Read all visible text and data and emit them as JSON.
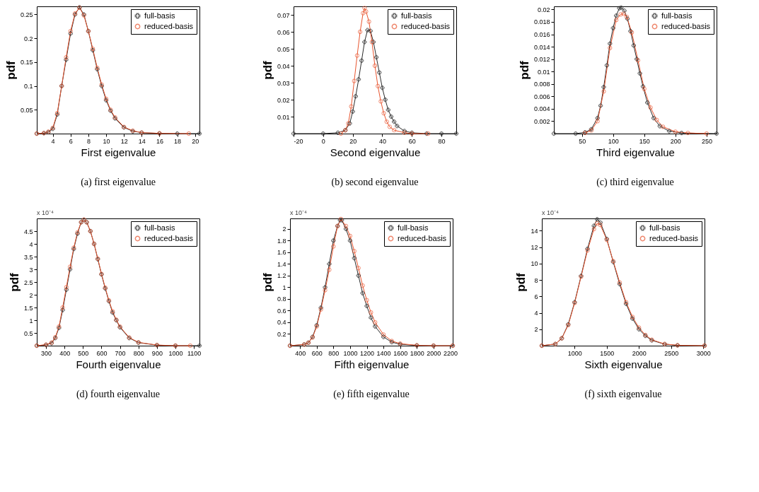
{
  "chart_data": [
    {
      "type": "line",
      "title": "(a)  first eigenvalue",
      "xlabel": "First eigenvalue",
      "ylabel": "pdf",
      "legend": "top right",
      "grid": false,
      "xlim": [
        2.2,
        20.5
      ],
      "xticks": [
        4,
        6,
        8,
        10,
        12,
        14,
        16,
        18,
        20
      ],
      "ylim": [
        0,
        0.267
      ],
      "yticks": [
        0.05,
        0.1,
        0.15,
        0.2,
        0.25
      ],
      "series": [
        {
          "name": "full-basis",
          "color": "#2b2b2b",
          "marker": "cross",
          "x": [
            2.2,
            3,
            3.5,
            4,
            4.5,
            5,
            5.5,
            6,
            6.5,
            7,
            7.5,
            8,
            8.5,
            9,
            9.5,
            10,
            10.5,
            11,
            12,
            13,
            14,
            16,
            18,
            20.5
          ],
          "values": [
            0,
            0.001,
            0.003,
            0.01,
            0.04,
            0.1,
            0.155,
            0.21,
            0.25,
            0.265,
            0.25,
            0.215,
            0.175,
            0.135,
            0.1,
            0.07,
            0.048,
            0.032,
            0.013,
            0.005,
            0.002,
            0.0005,
            0,
            0
          ]
        },
        {
          "name": "reduced-basis",
          "color": "#e8542e",
          "marker": "circle",
          "x": [
            2.2,
            3,
            3.5,
            4,
            4.5,
            5,
            5.5,
            6,
            6.5,
            7,
            7.5,
            8,
            8.5,
            9,
            9.5,
            10,
            10.5,
            11,
            12,
            13,
            14,
            16,
            19.3
          ],
          "values": [
            0,
            0.001,
            0.004,
            0.012,
            0.043,
            0.1,
            0.16,
            0.215,
            0.252,
            0.264,
            0.248,
            0.215,
            0.178,
            0.138,
            0.103,
            0.073,
            0.05,
            0.034,
            0.014,
            0.006,
            0.002,
            0.0005,
            0
          ]
        }
      ]
    },
    {
      "type": "line",
      "title": "(b)  second eigenvalue",
      "xlabel": "Second eigenvalue",
      "ylabel": "pdf",
      "legend": "top right",
      "grid": false,
      "xlim": [
        -20,
        90
      ],
      "xticks": [
        -20,
        0,
        20,
        40,
        60,
        80
      ],
      "ylim": [
        0,
        0.075
      ],
      "yticks": [
        0.01,
        0.02,
        0.03,
        0.04,
        0.05,
        0.06,
        0.07
      ],
      "series": [
        {
          "name": "full-basis",
          "color": "#2b2b2b",
          "marker": "cross",
          "x": [
            -20,
            0,
            10,
            15,
            18,
            20,
            22,
            24,
            26,
            28,
            30,
            32,
            34,
            36,
            38,
            40,
            42,
            44,
            46,
            48,
            50,
            55,
            60,
            70,
            80,
            90
          ],
          "values": [
            0,
            0,
            0.0005,
            0.002,
            0.006,
            0.013,
            0.022,
            0.032,
            0.043,
            0.054,
            0.061,
            0.0605,
            0.054,
            0.045,
            0.036,
            0.027,
            0.02,
            0.014,
            0.01,
            0.007,
            0.0045,
            0.0015,
            0.0005,
            0,
            0,
            0
          ]
        },
        {
          "name": "reduced-basis",
          "color": "#e8542e",
          "marker": "circle",
          "x": [
            12,
            15,
            17,
            19,
            21,
            23,
            25,
            27,
            28,
            29,
            31,
            33,
            35,
            37,
            39,
            41,
            43,
            45,
            48,
            55,
            60,
            71
          ],
          "values": [
            0,
            0.002,
            0.006,
            0.016,
            0.031,
            0.046,
            0.06,
            0.071,
            0.074,
            0.072,
            0.066,
            0.054,
            0.04,
            0.028,
            0.019,
            0.012,
            0.007,
            0.004,
            0.002,
            0.0005,
            0,
            0
          ]
        }
      ]
    },
    {
      "type": "line",
      "title": "(c)  third eigenvalue",
      "xlabel": "Third eigenvalue",
      "ylabel": "pdf",
      "legend": "top right",
      "grid": false,
      "xlim": [
        5,
        266
      ],
      "xticks": [
        50,
        100,
        150,
        200,
        250
      ],
      "ylim": [
        0,
        0.0205
      ],
      "yticks": [
        0.002,
        0.004,
        0.006,
        0.008,
        0.01,
        0.012,
        0.014,
        0.016,
        0.018,
        0.02
      ],
      "series": [
        {
          "name": "full-basis",
          "color": "#2b2b2b",
          "marker": "cross",
          "x": [
            5,
            40,
            55,
            65,
            75,
            80,
            85,
            90,
            95,
            100,
            105,
            110,
            113,
            118,
            123,
            128,
            133,
            138,
            143,
            148,
            155,
            165,
            175,
            190,
            210,
            266
          ],
          "values": [
            0,
            0,
            0.0002,
            0.0007,
            0.0025,
            0.0045,
            0.0075,
            0.011,
            0.0145,
            0.017,
            0.019,
            0.0202,
            0.0203,
            0.0198,
            0.0185,
            0.0165,
            0.0142,
            0.012,
            0.0097,
            0.0076,
            0.005,
            0.0025,
            0.0012,
            0.0004,
            0.0001,
            0
          ]
        },
        {
          "name": "reduced-basis",
          "color": "#e8542e",
          "marker": "circle",
          "x": [
            55,
            65,
            75,
            85,
            95,
            105,
            112,
            117,
            122,
            130,
            140,
            150,
            160,
            170,
            180,
            200,
            220,
            250
          ],
          "values": [
            0.0001,
            0.0005,
            0.002,
            0.0068,
            0.0138,
            0.0183,
            0.0192,
            0.0193,
            0.0188,
            0.0163,
            0.0118,
            0.0072,
            0.0042,
            0.0022,
            0.0011,
            0.0003,
            0.0001,
            0
          ]
        }
      ]
    },
    {
      "type": "line",
      "title": "(d)  fourth eigenvalue",
      "xlabel": "Fourth eigenvalue",
      "ylabel": "pdf",
      "legend": "top right",
      "grid": false,
      "annotations": [
        "x 10⁻⁴"
      ],
      "xlim": [
        250,
        1130
      ],
      "xticks": [
        300,
        400,
        500,
        600,
        700,
        800,
        900,
        1000,
        1100
      ],
      "ylim": [
        0,
        5.0
      ],
      "yticks": [
        0.5,
        1,
        1.5,
        2,
        2.5,
        3,
        3.5,
        4,
        4.5
      ],
      "series": [
        {
          "name": "full-basis",
          "color": "#2b2b2b",
          "marker": "cross",
          "x": [
            250,
            300,
            330,
            350,
            370,
            390,
            410,
            430,
            450,
            470,
            490,
            505,
            520,
            540,
            560,
            580,
            600,
            620,
            640,
            660,
            680,
            700,
            750,
            800,
            900,
            1000,
            1130
          ],
          "values": [
            0,
            0.03,
            0.1,
            0.3,
            0.7,
            1.4,
            2.2,
            3.0,
            3.8,
            4.4,
            4.85,
            4.95,
            4.85,
            4.5,
            4.0,
            3.4,
            2.8,
            2.25,
            1.75,
            1.3,
            1.0,
            0.72,
            0.3,
            0.12,
            0.02,
            0,
            0
          ]
        },
        {
          "name": "reduced-basis",
          "color": "#e8542e",
          "marker": "circle",
          "x": [
            250,
            300,
            330,
            350,
            370,
            390,
            410,
            430,
            450,
            470,
            490,
            505,
            520,
            540,
            560,
            580,
            600,
            620,
            640,
            660,
            680,
            700,
            750,
            800,
            900,
            1000,
            1080
          ],
          "values": [
            0,
            0.04,
            0.12,
            0.33,
            0.75,
            1.5,
            2.3,
            3.1,
            3.85,
            4.45,
            4.85,
            4.95,
            4.85,
            4.5,
            4.0,
            3.42,
            2.82,
            2.28,
            1.78,
            1.35,
            1.02,
            0.75,
            0.32,
            0.13,
            0.025,
            0,
            0
          ]
        }
      ]
    },
    {
      "type": "line",
      "title": "(e)  fifth eigenvalue",
      "xlabel": "Fifth eigenvalue",
      "ylabel": "pdf",
      "legend": "top right",
      "grid": false,
      "annotations": [
        "x 10⁻⁴"
      ],
      "xlim": [
        280,
        2230
      ],
      "xticks": [
        400,
        600,
        800,
        1000,
        1200,
        1400,
        1600,
        1800,
        2000,
        2200
      ],
      "ylim": [
        0,
        2.18
      ],
      "yticks": [
        0.2,
        0.4,
        0.6,
        0.8,
        1,
        1.2,
        1.4,
        1.6,
        1.8,
        2
      ],
      "series": [
        {
          "name": "full-basis",
          "color": "#2b2b2b",
          "marker": "cross",
          "x": [
            280,
            450,
            500,
            550,
            600,
            650,
            700,
            750,
            800,
            850,
            880,
            900,
            950,
            1000,
            1050,
            1100,
            1150,
            1200,
            1250,
            1300,
            1400,
            1500,
            1600,
            1800,
            2000,
            2230
          ],
          "values": [
            0,
            0.02,
            0.05,
            0.15,
            0.35,
            0.65,
            1.0,
            1.4,
            1.8,
            2.05,
            2.15,
            2.15,
            2.0,
            1.8,
            1.5,
            1.2,
            0.9,
            0.68,
            0.48,
            0.33,
            0.15,
            0.06,
            0.025,
            0.004,
            0,
            0
          ]
        },
        {
          "name": "reduced-basis",
          "color": "#e8542e",
          "marker": "circle",
          "x": [
            280,
            450,
            500,
            550,
            600,
            650,
            700,
            750,
            800,
            850,
            890,
            950,
            1000,
            1050,
            1100,
            1150,
            1200,
            1250,
            1300,
            1400,
            1500,
            1600,
            1800,
            2000,
            2230
          ],
          "values": [
            0,
            0.02,
            0.05,
            0.14,
            0.33,
            0.62,
            0.95,
            1.3,
            1.7,
            2.05,
            2.17,
            2.05,
            1.88,
            1.62,
            1.33,
            1.03,
            0.78,
            0.57,
            0.4,
            0.19,
            0.08,
            0.035,
            0.006,
            0,
            0
          ]
        }
      ]
    },
    {
      "type": "line",
      "title": "(f)  sixth eigenvalue",
      "xlabel": "Sixth eigenvalue",
      "ylabel": "pdf",
      "legend": "top right",
      "grid": false,
      "annotations": [
        "x 10⁻⁴"
      ],
      "xlim": [
        490,
        3020
      ],
      "xticks": [
        1000,
        1500,
        2000,
        2500,
        3000
      ],
      "ylim": [
        0,
        15.5
      ],
      "yticks": [
        2,
        4,
        6,
        8,
        10,
        12,
        14
      ],
      "series": [
        {
          "name": "full-basis",
          "color": "#2b2b2b",
          "marker": "cross",
          "x": [
            490,
            700,
            800,
            900,
            1000,
            1100,
            1200,
            1300,
            1350,
            1400,
            1500,
            1600,
            1700,
            1800,
            1900,
            2000,
            2100,
            2200,
            2400,
            2600,
            3020
          ],
          "values": [
            0,
            0.2,
            0.9,
            2.6,
            5.3,
            8.5,
            11.8,
            14.6,
            15.4,
            15.0,
            13.0,
            10.2,
            7.5,
            5.1,
            3.3,
            2.0,
            1.2,
            0.65,
            0.18,
            0.04,
            0
          ]
        },
        {
          "name": "reduced-basis",
          "color": "#e8542e",
          "marker": "circle",
          "x": [
            490,
            700,
            800,
            900,
            1000,
            1100,
            1200,
            1300,
            1350,
            1400,
            1500,
            1600,
            1700,
            1800,
            1900,
            2000,
            2100,
            2200,
            2400,
            2600,
            3020
          ],
          "values": [
            0,
            0.2,
            0.9,
            2.5,
            5.2,
            8.4,
            11.6,
            14.2,
            14.9,
            14.7,
            12.9,
            10.3,
            7.7,
            5.3,
            3.5,
            2.2,
            1.3,
            0.72,
            0.2,
            0.05,
            0
          ]
        }
      ]
    }
  ]
}
